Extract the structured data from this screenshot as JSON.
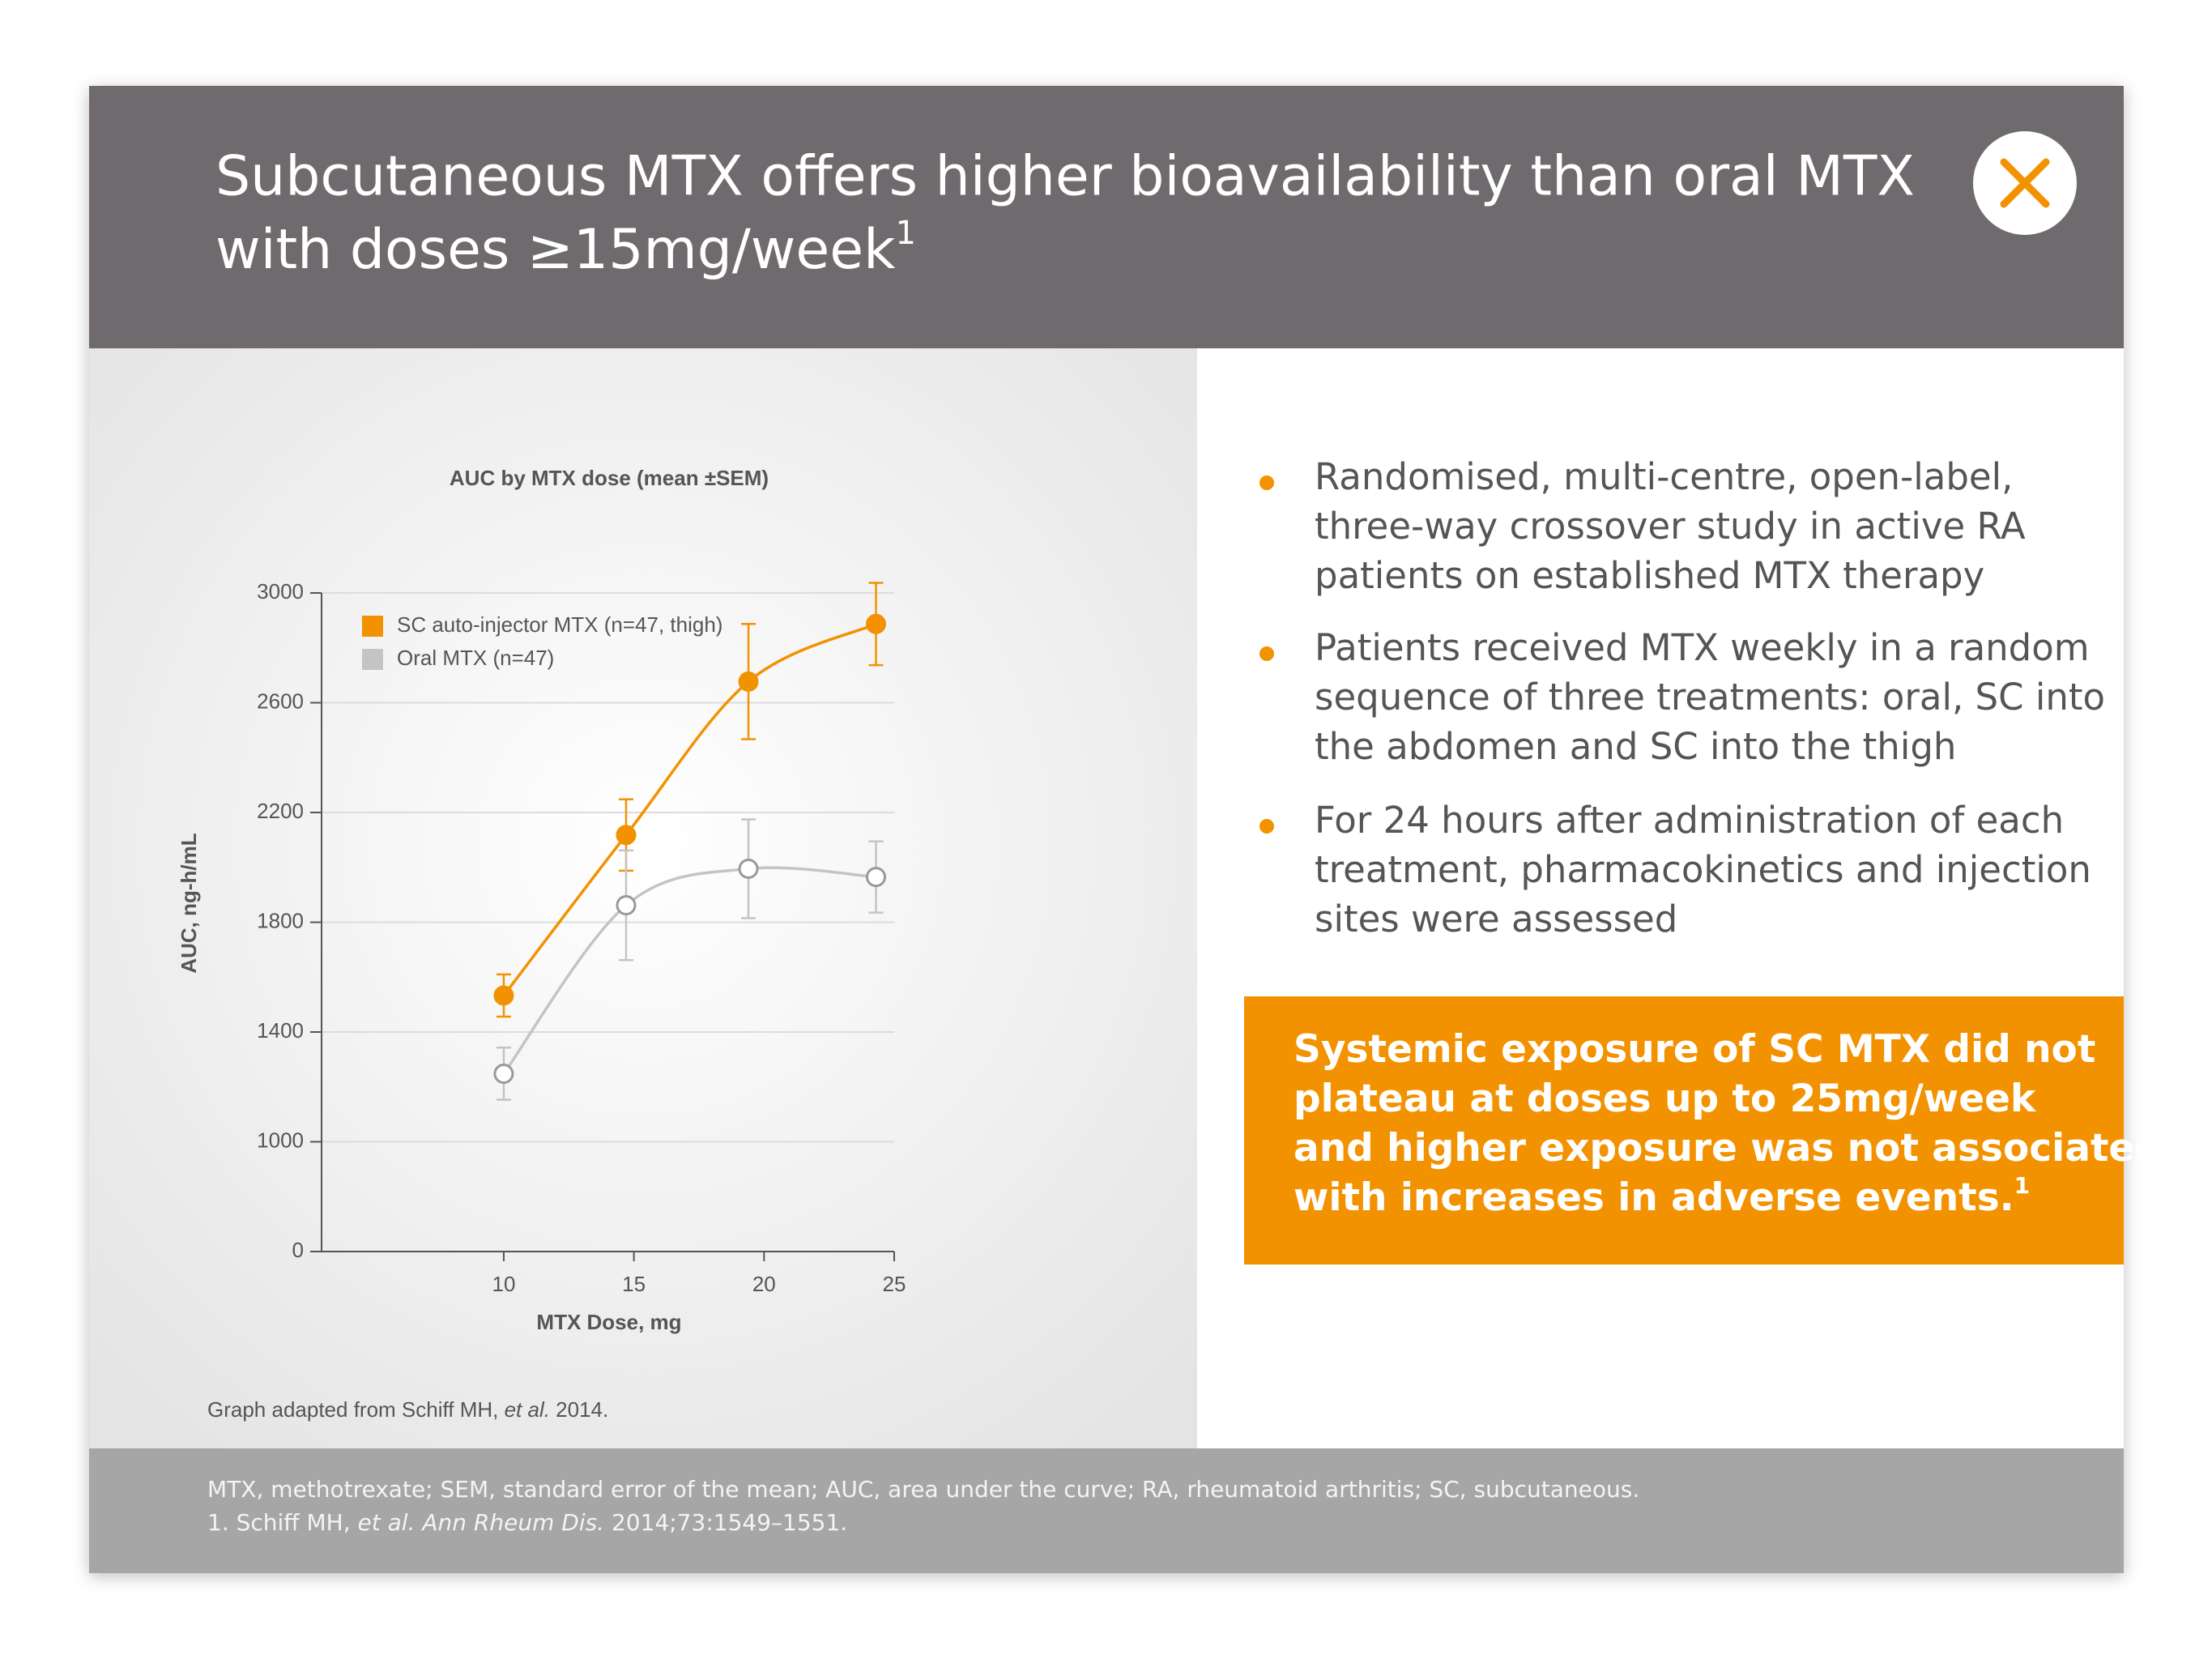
{
  "header": {
    "title_line1": "Subcutaneous MTX offers higher bioavailability than oral MTX",
    "title_line2": "with doses ≥15mg/week",
    "title_superscript": "1"
  },
  "chart_data": {
    "type": "line",
    "title": "AUC by MTX dose (mean ±SEM)",
    "x_label": "MTX Dose, mg",
    "y_label": "AUC, ng-h/mL",
    "xlim": [
      3,
      25
    ],
    "xticks": [
      10,
      15,
      20,
      25
    ],
    "ylim": [
      0,
      3000
    ],
    "yticks": [
      0,
      1000,
      1400,
      1800,
      2200,
      2600,
      3000
    ],
    "grid": true,
    "legend": "upper left",
    "series": [
      {
        "name": "SC auto-injector MTX (n=47, thigh)",
        "color": "#f39200",
        "marker": "filled",
        "x": [
          10,
          14.7,
          19.4,
          24.3
        ],
        "values": [
          1533,
          2118,
          2677,
          2887
        ],
        "errors": [
          77,
          130,
          210,
          150
        ]
      },
      {
        "name": "Oral MTX (n=47)",
        "color": "#c4c4c4",
        "marker": "open",
        "x": [
          10,
          14.7,
          19.4,
          24.3
        ],
        "values": [
          1248,
          1862,
          1995,
          1965
        ],
        "errors": [
          95,
          200,
          180,
          130
        ]
      }
    ]
  },
  "source_note": [
    "Graph adapted from Schiff MH, ",
    "et al.",
    " 2014."
  ],
  "bullets": [
    [
      "Randomised, multi-centre, open-label,",
      "three-way crossover study in active RA",
      "patients on established MTX therapy"
    ],
    [
      "Patients received MTX weekly in a random",
      "sequence of three treatments: oral, SC into",
      "the abdomen and SC into the thigh"
    ],
    [
      "For 24 hours after administration of each",
      "treatment, pharmacokinetics and injection",
      "sites were assessed"
    ]
  ],
  "callout": {
    "lines": [
      "Systemic exposure of SC MTX did not",
      "plateau at doses up to 25mg/week",
      "and higher exposure was not associated",
      "with increases in adverse events."
    ],
    "superscript": "1"
  },
  "footer": {
    "line1": "MTX, methotrexate; SEM, standard error of the mean; AUC, area under the curve; RA, rheumatoid arthritis; SC, subcutaneous.",
    "line2": [
      "1. Schiff MH, ",
      "et al. Ann Rheum Dis.",
      " 2014;73:1549–1551."
    ]
  }
}
